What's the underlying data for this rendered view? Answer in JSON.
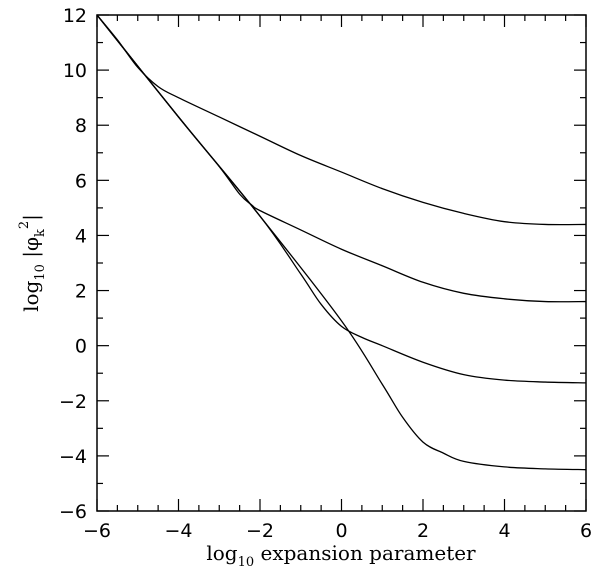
{
  "chart_data": {
    "type": "line",
    "xlabel": {
      "prefix": "log",
      "sub": "10",
      "rest": " expansion parameter"
    },
    "ylabel": {
      "prefix": "log",
      "sub": "10",
      "rest": " |φ",
      "sub2": "k",
      "sup": "2",
      "close": "|"
    },
    "xlim": [
      -6,
      6
    ],
    "ylim": [
      -6,
      12
    ],
    "x_ticks": [
      -6,
      -4,
      -2,
      0,
      2,
      4,
      6
    ],
    "y_ticks": [
      -6,
      -4,
      -2,
      0,
      2,
      4,
      6,
      8,
      10,
      12
    ],
    "x_tick_labels": [
      "−6",
      "−4",
      "−2",
      "0",
      "2",
      "4",
      "6"
    ],
    "y_tick_labels": [
      "−6",
      "−4",
      "−2",
      "0",
      "2",
      "4",
      "6",
      "8",
      "10",
      "12"
    ],
    "series": [
      {
        "x": [
          -6,
          -5.5,
          -5,
          -4.5,
          -4,
          -3,
          -2,
          -1,
          0,
          1,
          2,
          3,
          4,
          5,
          6
        ],
        "y": [
          12,
          11.1,
          10.1,
          9.4,
          9.0,
          8.3,
          7.6,
          6.9,
          6.3,
          5.7,
          5.2,
          4.8,
          4.5,
          4.4,
          4.4
        ]
      },
      {
        "x": [
          -6,
          -4,
          -3,
          -2.5,
          -2.2,
          -2,
          -1,
          0,
          1,
          2,
          3,
          4,
          5,
          6
        ],
        "y": [
          12,
          8.3,
          6.5,
          5.5,
          5.1,
          4.9,
          4.2,
          3.5,
          2.9,
          2.3,
          1.9,
          1.7,
          1.6,
          1.6
        ]
      },
      {
        "x": [
          -6,
          -4,
          -2,
          -1,
          -0.5,
          0,
          0.5,
          1,
          2,
          3,
          4,
          5,
          6
        ],
        "y": [
          12,
          8.3,
          4.7,
          2.6,
          1.5,
          0.7,
          0.3,
          0,
          -0.6,
          -1.05,
          -1.25,
          -1.32,
          -1.35
        ]
      },
      {
        "x": [
          -6,
          -4,
          -2,
          0,
          1,
          1.5,
          2,
          2.5,
          3,
          4,
          5,
          6
        ],
        "y": [
          12,
          8.3,
          4.7,
          0.9,
          -1.4,
          -2.6,
          -3.5,
          -3.9,
          -4.2,
          -4.4,
          -4.47,
          -4.5
        ]
      }
    ]
  }
}
